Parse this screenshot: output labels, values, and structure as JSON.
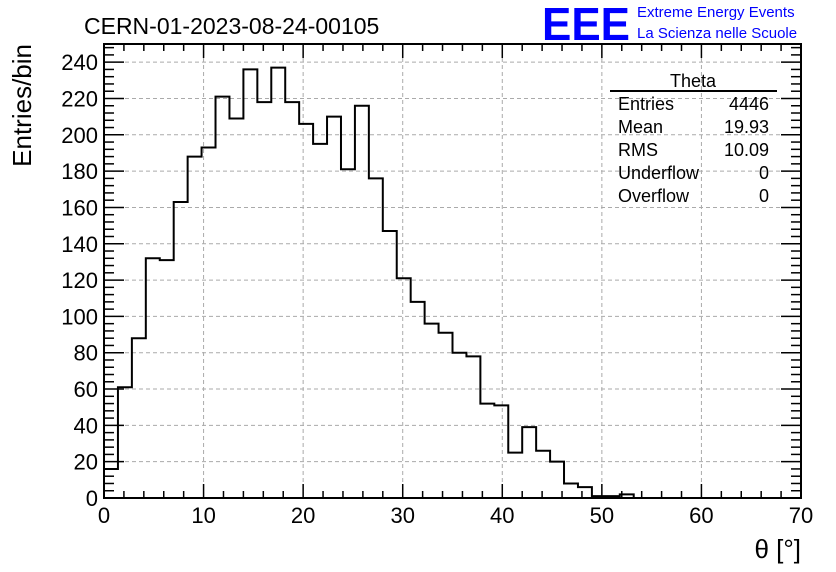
{
  "title": "CERN-01-2023-08-24-00105",
  "logo": {
    "mark": "EEE",
    "line1": "Extreme Energy Events",
    "line2": "La Scienza nelle Scuole",
    "color": "#0000ff"
  },
  "stats": {
    "name": "Theta",
    "rows": [
      {
        "label": "Entries",
        "value": "4446"
      },
      {
        "label": "Mean",
        "value": "19.93"
      },
      {
        "label": "RMS",
        "value": "10.09"
      },
      {
        "label": "Underflow",
        "value": "0"
      },
      {
        "label": "Overflow",
        "value": "0"
      }
    ]
  },
  "chart_data": {
    "type": "bar",
    "style": "step-histogram",
    "title": "CERN-01-2023-08-24-00105",
    "xlabel": "θ [°]",
    "ylabel": "Entries/bin",
    "xlim": [
      0,
      70
    ],
    "ylim": [
      0,
      250
    ],
    "grid": true,
    "bin_width": 1.4,
    "bin_start": 0,
    "x_ticks": [
      0,
      10,
      20,
      30,
      40,
      50,
      60,
      70
    ],
    "y_ticks": [
      0,
      20,
      40,
      60,
      80,
      100,
      120,
      140,
      160,
      180,
      200,
      220,
      240
    ],
    "values": [
      16,
      61,
      88,
      132,
      131,
      163,
      188,
      193,
      221,
      209,
      236,
      218,
      237,
      218,
      206,
      195,
      210,
      181,
      216,
      176,
      147,
      121,
      108,
      96,
      91,
      80,
      78,
      52,
      51,
      25,
      39,
      26,
      20,
      8,
      6,
      1,
      1,
      2,
      0,
      0,
      0,
      0,
      0,
      0,
      0,
      0,
      0,
      0,
      0,
      0
    ]
  }
}
